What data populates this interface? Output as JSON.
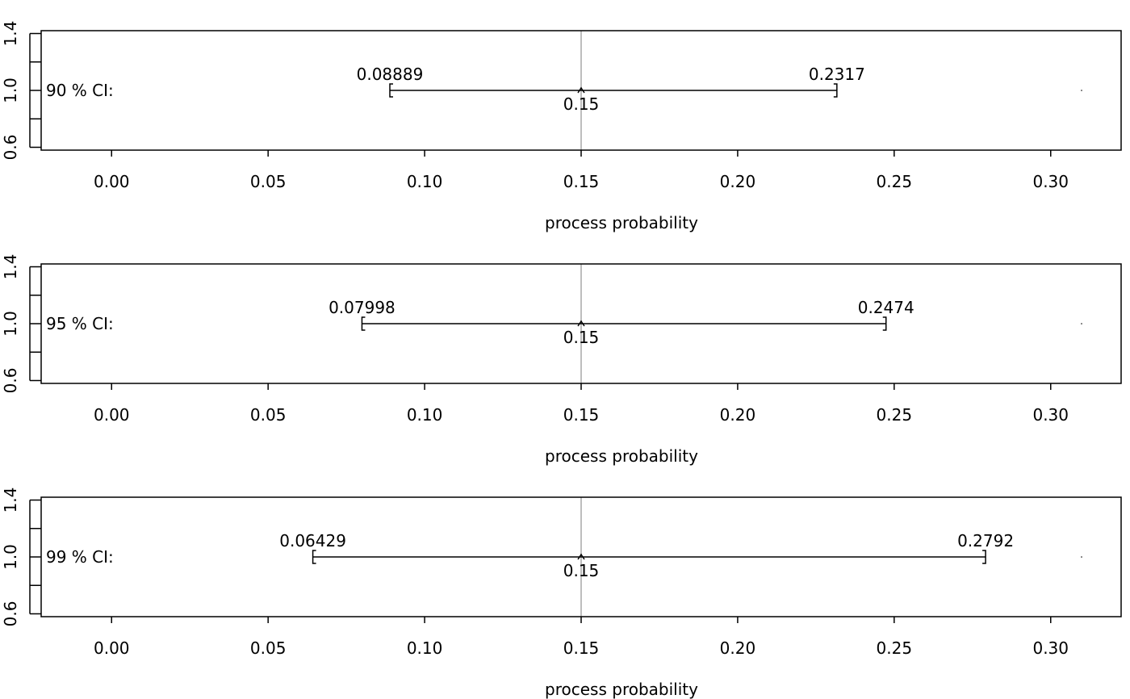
{
  "chart_data": [
    {
      "type": "interval",
      "row_label": "90 % CI:",
      "lower": 0.08889,
      "upper": 0.2317,
      "estimate": 0.15,
      "lower_label": "0.08889",
      "upper_label": "0.2317",
      "estimate_label": "0.15",
      "reference_line": 0.15,
      "xlabel": "process probability",
      "xlim": [
        -0.0225,
        0.3225
      ],
      "ylim": [
        0.58,
        1.42
      ],
      "xticks": [
        "0.00",
        "0.05",
        "0.10",
        "0.15",
        "0.20",
        "0.25",
        "0.30"
      ],
      "yticks": [
        "0.6",
        "1.0",
        "1.4"
      ]
    },
    {
      "type": "interval",
      "row_label": "95 % CI:",
      "lower": 0.07998,
      "upper": 0.2474,
      "estimate": 0.15,
      "lower_label": "0.07998",
      "upper_label": "0.2474",
      "estimate_label": "0.15",
      "reference_line": 0.15,
      "xlabel": "process probability",
      "xlim": [
        -0.0225,
        0.3225
      ],
      "ylim": [
        0.58,
        1.42
      ],
      "xticks": [
        "0.00",
        "0.05",
        "0.10",
        "0.15",
        "0.20",
        "0.25",
        "0.30"
      ],
      "yticks": [
        "0.6",
        "1.0",
        "1.4"
      ]
    },
    {
      "type": "interval",
      "row_label": "99 % CI:",
      "lower": 0.06429,
      "upper": 0.2792,
      "estimate": 0.15,
      "lower_label": "0.06429",
      "upper_label": "0.2792",
      "estimate_label": "0.15",
      "reference_line": 0.15,
      "xlabel": "process probability",
      "xlim": [
        -0.0225,
        0.3225
      ],
      "ylim": [
        0.58,
        1.42
      ],
      "xticks": [
        "0.00",
        "0.05",
        "0.10",
        "0.15",
        "0.20",
        "0.25",
        "0.30"
      ],
      "yticks": [
        "0.6",
        "1.0",
        "1.4"
      ]
    }
  ],
  "colors": {
    "axis": "#000000",
    "reference_line": "#bebebe",
    "interval": "#000000"
  }
}
